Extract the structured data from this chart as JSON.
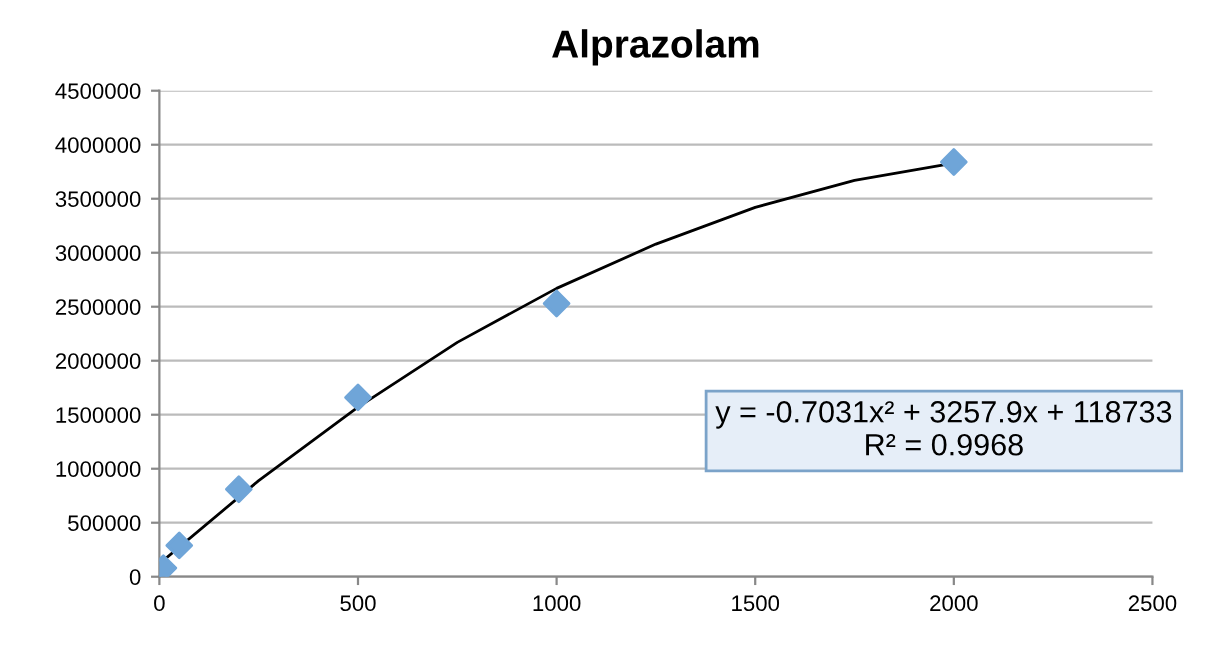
{
  "chart_data": {
    "type": "scatter",
    "title": "Alprazolam",
    "series": [
      {
        "color": "#6fa5d8",
        "marker": "diamond",
        "x": [
          10,
          50,
          200,
          500,
          1000,
          2000
        ],
        "values": [
          80000,
          290000,
          810000,
          1660000,
          2530000,
          3840000
        ]
      },
      {
        "type": "line",
        "color": "#000000",
        "marker": "none",
        "line_style": "solid",
        "x": [
          0,
          250,
          500,
          750,
          1000,
          1250,
          1500,
          1750,
          2000
        ],
        "values": [
          120000,
          890000,
          1570000,
          2170000,
          2670000,
          3080000,
          3420000,
          3670000,
          3830000
        ]
      }
    ],
    "xlim": [
      0,
      2500
    ],
    "xticks": [
      0,
      500,
      1000,
      1500,
      2000,
      2500
    ],
    "ylim": [
      0,
      4500000
    ],
    "yticks": [
      0,
      500000,
      1000000,
      1500000,
      2000000,
      2500000,
      3000000,
      3500000,
      4000000,
      4500000
    ],
    "grid": "y",
    "legend": false,
    "annotations": [
      "y = -0.7031x² + 3257.9x + 118733\nR² = 0.9968"
    ]
  }
}
